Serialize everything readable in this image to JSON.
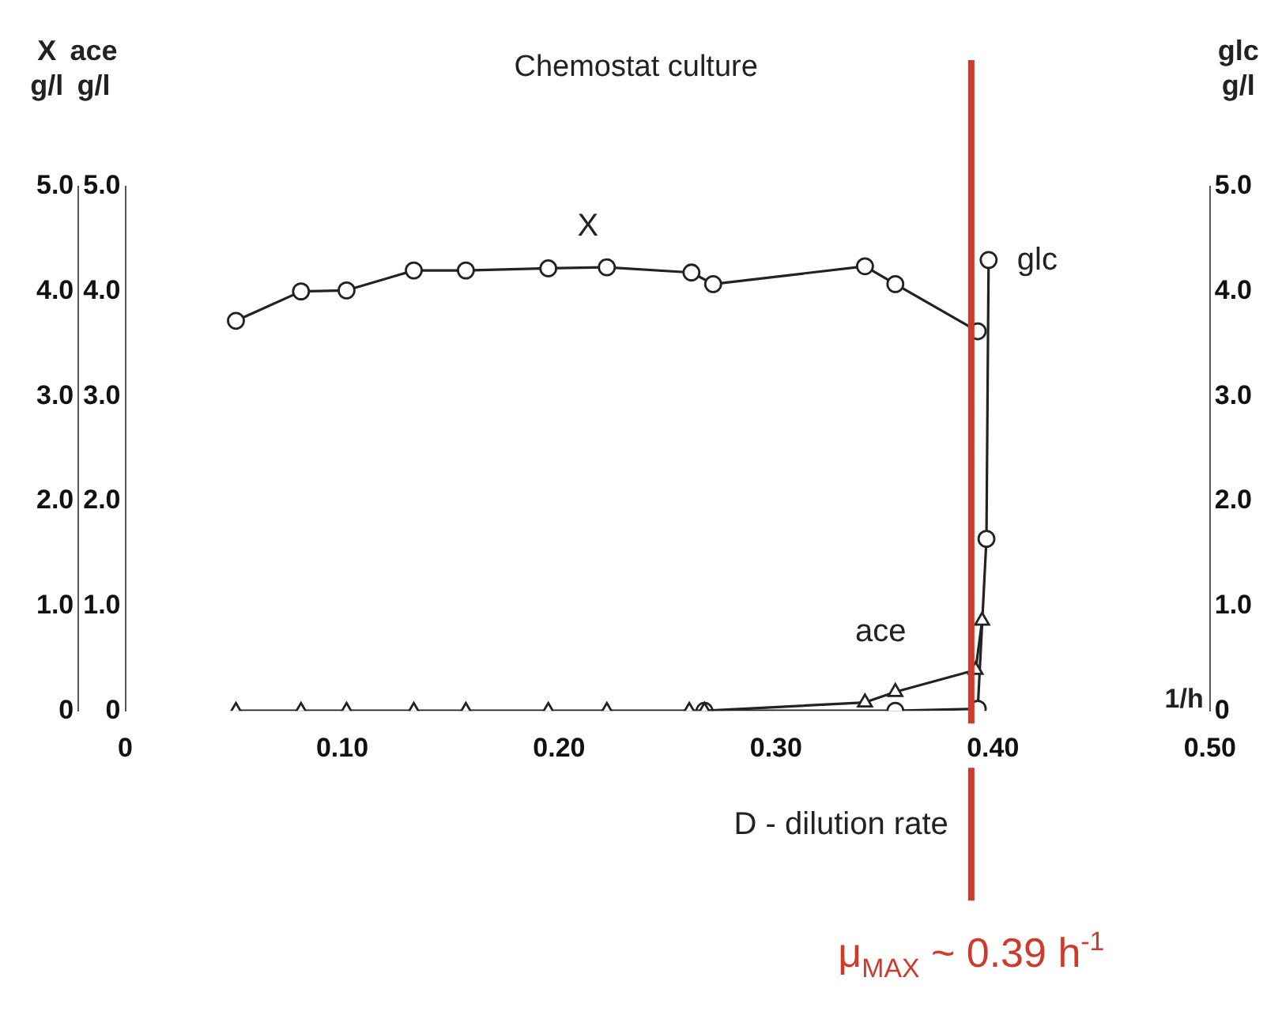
{
  "chart_data": {
    "type": "line",
    "title": "Chemostat culture",
    "xlabel": "D - dilution rate",
    "ylabel": "X g/l",
    "y2label": "glc g/l",
    "y3label": "ace g/l",
    "xlim": [
      0,
      0.5
    ],
    "xticks": [
      0,
      {
        "value": 0.1,
        "label": "0.10"
      },
      {
        "value": 0.2,
        "label": "0.20"
      },
      {
        "value": 0.3,
        "label": "0.30"
      },
      {
        "value": 0.4,
        "label": "0.40"
      },
      {
        "value": 0.5,
        "label": "0.50"
      }
    ],
    "ylim": [
      0,
      5
    ],
    "yticks": [
      0,
      {
        "value": 1,
        "label": "1.0"
      },
      {
        "value": 2,
        "label": "2.0"
      },
      {
        "value": 3,
        "label": "3.0"
      },
      {
        "value": 4,
        "label": "4.0"
      },
      {
        "value": 5,
        "label": "5.0"
      }
    ],
    "y2lim": [
      0,
      5
    ],
    "y2ticks": [
      0,
      {
        "value": 1,
        "label": "1.0"
      },
      {
        "value": 2,
        "label": "2.0"
      },
      {
        "value": 3,
        "label": "3.0"
      },
      {
        "value": 4,
        "label": "4.0"
      },
      {
        "value": 5,
        "label": "5.0"
      }
    ],
    "y3lim": [
      0,
      5
    ],
    "y3ticks": [
      0,
      {
        "value": 1,
        "label": "1.0"
      },
      {
        "value": 2,
        "label": "2.0"
      },
      {
        "value": 3,
        "label": "3.0"
      },
      {
        "value": 4,
        "label": "4.0"
      },
      {
        "value": 5,
        "label": "5.0"
      }
    ],
    "grid": false,
    "legend": false,
    "line_style": "solid",
    "series": [
      {
        "name": "X",
        "color": "#222222",
        "marker": "circle",
        "x": [
          0.051,
          0.081,
          0.102,
          0.133,
          0.157,
          0.195,
          0.222,
          0.261,
          0.271,
          0.341,
          0.355,
          0.393
        ],
        "values": [
          3.72,
          4.0,
          4.01,
          4.2,
          4.2,
          4.22,
          4.23,
          4.18,
          4.07,
          4.24,
          4.07,
          3.62
        ]
      },
      {
        "name": "ace",
        "color": "#222222",
        "marker": "triangle",
        "axis": "y3",
        "x": [
          0.051,
          0.081,
          0.102,
          0.133,
          0.157,
          0.195,
          0.222,
          0.26,
          0.267,
          0.341,
          0.355,
          0.392,
          0.395
        ],
        "values": [
          0,
          0,
          0,
          0,
          0,
          0,
          0,
          0,
          0,
          0.08,
          0.18,
          0.39,
          0.86
        ]
      },
      {
        "name": "glc",
        "color": "#222222",
        "marker": "circle",
        "axis": "y2",
        "x": [
          0.267,
          0.355,
          0.393,
          0.397,
          0.398
        ],
        "values": [
          0,
          0,
          0.02,
          1.64,
          4.3
        ]
      }
    ],
    "ref_lines": [
      {
        "axis": "x",
        "value": 0.39,
        "label": "μ$_{MAX}$ ~ 0.39 h$^{-1}$",
        "color": "#d03a2a"
      }
    ],
    "annotations": [
      "1/h"
    ]
  }
}
